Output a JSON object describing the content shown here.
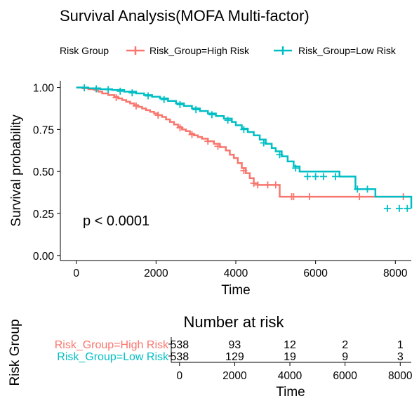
{
  "chart_data": [
    {
      "type": "line",
      "chart_kind": "kaplan-meier",
      "title": "Survival Analysis(MOFA Multi-factor)",
      "xlabel": "Time",
      "ylabel": "Survival probability",
      "xlim": [
        -400,
        8400
      ],
      "ylim": [
        -0.03,
        1.04
      ],
      "xticks": [
        0,
        2000,
        4000,
        6000,
        8000
      ],
      "yticks": [
        0.0,
        0.25,
        0.5,
        0.75,
        1.0
      ],
      "xtick_labels": [
        "0",
        "2000",
        "4000",
        "6000",
        "8000"
      ],
      "ytick_labels": [
        "0.00",
        "0.25",
        "0.50",
        "0.75",
        "1.00"
      ],
      "grid": false,
      "legend": {
        "title": "Risk Group",
        "position": "top"
      },
      "annotation": "p < 0.0001",
      "series": [
        {
          "name": "Risk_Group=High Risk",
          "color": "#F8766D",
          "steps": [
            [
              0,
              1.0
            ],
            [
              150,
              0.995
            ],
            [
              300,
              0.99
            ],
            [
              450,
              0.985
            ],
            [
              550,
              0.975
            ],
            [
              650,
              0.965
            ],
            [
              800,
              0.955
            ],
            [
              950,
              0.945
            ],
            [
              1050,
              0.935
            ],
            [
              1150,
              0.925
            ],
            [
              1250,
              0.915
            ],
            [
              1350,
              0.905
            ],
            [
              1450,
              0.895
            ],
            [
              1550,
              0.885
            ],
            [
              1650,
              0.875
            ],
            [
              1750,
              0.865
            ],
            [
              1850,
              0.855
            ],
            [
              1950,
              0.845
            ],
            [
              2050,
              0.835
            ],
            [
              2150,
              0.825
            ],
            [
              2250,
              0.81
            ],
            [
              2350,
              0.795
            ],
            [
              2450,
              0.78
            ],
            [
              2550,
              0.765
            ],
            [
              2650,
              0.75
            ],
            [
              2750,
              0.74
            ],
            [
              2850,
              0.725
            ],
            [
              2950,
              0.715
            ],
            [
              3050,
              0.705
            ],
            [
              3150,
              0.695
            ],
            [
              3300,
              0.68
            ],
            [
              3450,
              0.665
            ],
            [
              3600,
              0.645
            ],
            [
              3750,
              0.625
            ],
            [
              3850,
              0.6
            ],
            [
              3950,
              0.58
            ],
            [
              4050,
              0.55
            ],
            [
              4150,
              0.52
            ],
            [
              4250,
              0.49
            ],
            [
              4350,
              0.46
            ],
            [
              4450,
              0.43
            ],
            [
              4550,
              0.42
            ],
            [
              5100,
              0.35
            ],
            [
              8400,
              0.35
            ]
          ],
          "censors": [
            [
              1000,
              0.94
            ],
            [
              1500,
              0.89
            ],
            [
              2050,
              0.835
            ],
            [
              2600,
              0.76
            ],
            [
              2900,
              0.72
            ],
            [
              3300,
              0.68
            ],
            [
              3550,
              0.65
            ],
            [
              4200,
              0.505
            ],
            [
              4450,
              0.43
            ],
            [
              4550,
              0.42
            ],
            [
              4800,
              0.42
            ],
            [
              5000,
              0.42
            ],
            [
              5400,
              0.35
            ],
            [
              5450,
              0.35
            ],
            [
              5850,
              0.35
            ],
            [
              7100,
              0.35
            ],
            [
              8200,
              0.35
            ]
          ]
        },
        {
          "name": "Risk_Group=Low Risk",
          "color": "#00BFC4",
          "steps": [
            [
              0,
              1.0
            ],
            [
              300,
              0.995
            ],
            [
              600,
              0.99
            ],
            [
              900,
              0.985
            ],
            [
              1200,
              0.975
            ],
            [
              1500,
              0.965
            ],
            [
              1700,
              0.955
            ],
            [
              1900,
              0.945
            ],
            [
              2100,
              0.935
            ],
            [
              2300,
              0.92
            ],
            [
              2500,
              0.905
            ],
            [
              2700,
              0.89
            ],
            [
              2900,
              0.875
            ],
            [
              3100,
              0.86
            ],
            [
              3300,
              0.845
            ],
            [
              3500,
              0.83
            ],
            [
              3700,
              0.815
            ],
            [
              3900,
              0.795
            ],
            [
              4000,
              0.775
            ],
            [
              4150,
              0.755
            ],
            [
              4300,
              0.735
            ],
            [
              4450,
              0.715
            ],
            [
              4600,
              0.69
            ],
            [
              4750,
              0.665
            ],
            [
              4900,
              0.64
            ],
            [
              5000,
              0.62
            ],
            [
              5150,
              0.59
            ],
            [
              5300,
              0.56
            ],
            [
              5450,
              0.53
            ],
            [
              5600,
              0.5
            ],
            [
              6600,
              0.47
            ],
            [
              7000,
              0.395
            ],
            [
              7450,
              0.395
            ],
            [
              7500,
              0.35
            ],
            [
              8400,
              0.28
            ]
          ],
          "censors": [
            [
              200,
              0.998
            ],
            [
              500,
              0.992
            ],
            [
              800,
              0.987
            ],
            [
              1100,
              0.978
            ],
            [
              1400,
              0.968
            ],
            [
              1800,
              0.95
            ],
            [
              2200,
              0.928
            ],
            [
              2600,
              0.898
            ],
            [
              3000,
              0.868
            ],
            [
              3400,
              0.838
            ],
            [
              3800,
              0.805
            ],
            [
              4200,
              0.75
            ],
            [
              4700,
              0.67
            ],
            [
              5100,
              0.6
            ],
            [
              5500,
              0.52
            ],
            [
              5800,
              0.47
            ],
            [
              6000,
              0.47
            ],
            [
              6200,
              0.47
            ],
            [
              6500,
              0.47
            ],
            [
              7050,
              0.395
            ],
            [
              7300,
              0.395
            ],
            [
              7800,
              0.28
            ],
            [
              8100,
              0.28
            ],
            [
              8300,
              0.28
            ]
          ]
        }
      ]
    },
    {
      "type": "table",
      "title": "Number at risk",
      "ylabel": "Risk Group",
      "xlabel": "Time",
      "times": [
        0,
        2000,
        4000,
        6000,
        8000
      ],
      "time_labels": [
        "0",
        "2000",
        "4000",
        "6000",
        "8000"
      ],
      "rows": [
        {
          "label": "Risk_Group=High Risk",
          "color": "#F8766D",
          "values": [
            "538",
            "93",
            "12",
            "2",
            "1"
          ]
        },
        {
          "label": "Risk_Group=Low Risk",
          "color": "#00BFC4",
          "values": [
            "538",
            "129",
            "19",
            "9",
            "3"
          ]
        }
      ]
    }
  ]
}
